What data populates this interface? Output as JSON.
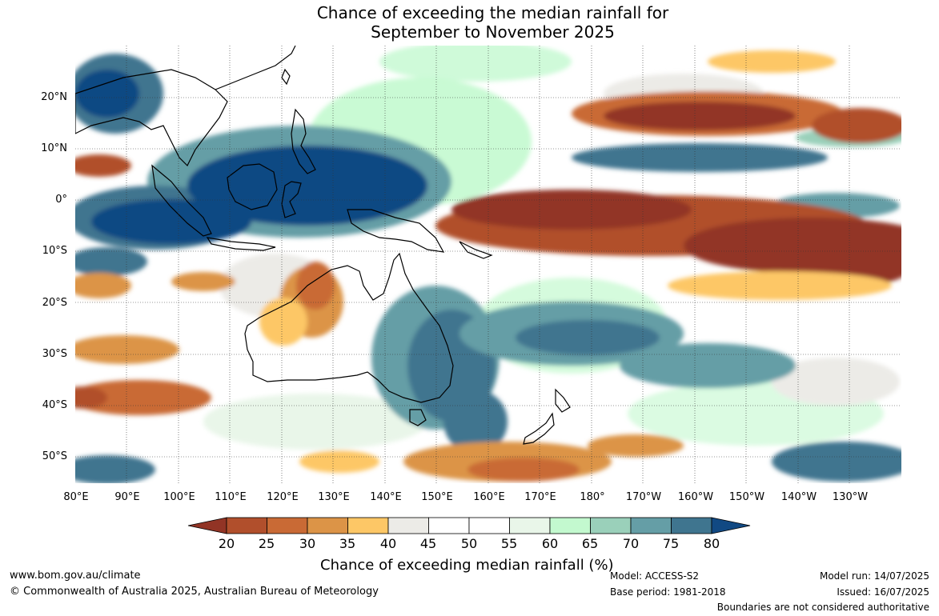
{
  "title": {
    "line1": "Chance of exceeding the median rainfall for",
    "line2": "September to November 2025"
  },
  "map": {
    "lat_labels": [
      "20°N",
      "10°N",
      "0°",
      "10°S",
      "20°S",
      "30°S",
      "40°S",
      "50°S"
    ],
    "lon_labels": [
      "80°E",
      "90°E",
      "100°E",
      "110°E",
      "120°E",
      "130°E",
      "140°E",
      "150°E",
      "160°E",
      "170°E",
      "180°",
      "170°W",
      "160°W",
      "150°W",
      "140°W",
      "130°W"
    ]
  },
  "colorbar": {
    "title": "Chance of exceeding median rainfall (%)",
    "ticks": [
      "20",
      "25",
      "30",
      "35",
      "40",
      "45",
      "50",
      "55",
      "60",
      "65",
      "70",
      "75",
      "80"
    ],
    "colors": [
      "#923425",
      "#b14f2c",
      "#c96a35",
      "#dc9447",
      "#fdc766",
      "#ecebe7",
      "#ffffff",
      "#ffffff",
      "#e9f6e9",
      "#c3f9cf",
      "#9ad0ba",
      "#659ea6",
      "#3f758f",
      "#114983"
    ]
  },
  "footer": {
    "website": "www.bom.gov.au/climate",
    "copyright": "© Commonwealth of Australia 2025, Australian Bureau of Meteorology",
    "model": "Model: ACCESS-S2",
    "base_period": "Base period: 1981-2018",
    "model_run": "Model run: 14/07/2025",
    "issued": "Issued: 16/07/2025",
    "disclaimer": "Boundaries are not considered authoritative"
  }
}
